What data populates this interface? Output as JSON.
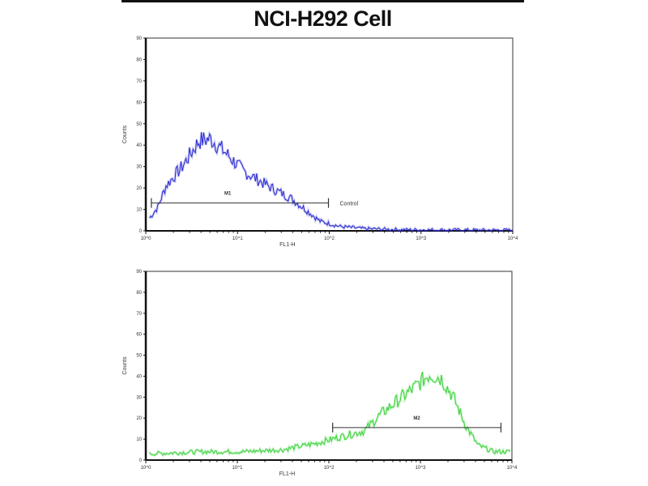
{
  "chart_data": [
    {
      "type": "line",
      "title": "NCI-H292 Cell",
      "xlabel": "FL1-H",
      "ylabel": "Counts",
      "xscale": "log",
      "xlim": [
        1,
        10000
      ],
      "ylim": [
        0,
        90
      ],
      "x_tick_labels": [
        "10^0",
        "10^1",
        "10^2",
        "10^3",
        "10^4"
      ],
      "y_tick_labels": [
        "0",
        "10",
        "20",
        "30",
        "40",
        "50",
        "60",
        "70",
        "80",
        "90"
      ],
      "grid": false,
      "color": "#2b2bd0",
      "series": [
        {
          "name": "Control",
          "x": [
            1.1,
            1.35,
            1.66,
            2.5,
            3.8,
            5.1,
            7.6,
            11.5,
            21.4,
            38.9,
            58.9,
            79.4,
            132,
            245,
            676,
            10000
          ],
          "y": [
            6,
            11,
            21,
            30,
            42,
            43,
            36,
            28,
            21,
            15,
            9,
            4.5,
            2,
            1,
            0.5,
            0.3
          ]
        }
      ],
      "markers": [
        {
          "label": "M1",
          "x_range": [
            1.15,
            98
          ],
          "y": 13
        }
      ]
    },
    {
      "type": "line",
      "xlabel": "FL1-H",
      "ylabel": "Counts",
      "xscale": "log",
      "xlim": [
        1,
        10000
      ],
      "ylim": [
        0,
        90
      ],
      "x_tick_labels": [
        "10^0",
        "10^1",
        "10^2",
        "10^3",
        "10^4"
      ],
      "y_tick_labels": [
        "0",
        "10",
        "20",
        "30",
        "40",
        "50",
        "60",
        "70",
        "80",
        "90"
      ],
      "grid": false,
      "color": "#3ad23a",
      "series": [
        {
          "x": [
            1.1,
            4.2,
            11.5,
            31.6,
            72.4,
            132,
            245,
            372,
            550,
            832,
            1259,
            1698,
            2291,
            3162,
            4266,
            6310,
            9550
          ],
          "y": [
            3,
            4,
            4,
            5,
            8,
            11,
            14,
            22,
            28,
            34,
            41,
            39,
            30,
            16,
            7,
            4,
            4
          ]
        }
      ],
      "markers": [
        {
          "label": "M2",
          "x_range": [
            110,
            7590
          ],
          "y": 15.5
        }
      ]
    }
  ]
}
